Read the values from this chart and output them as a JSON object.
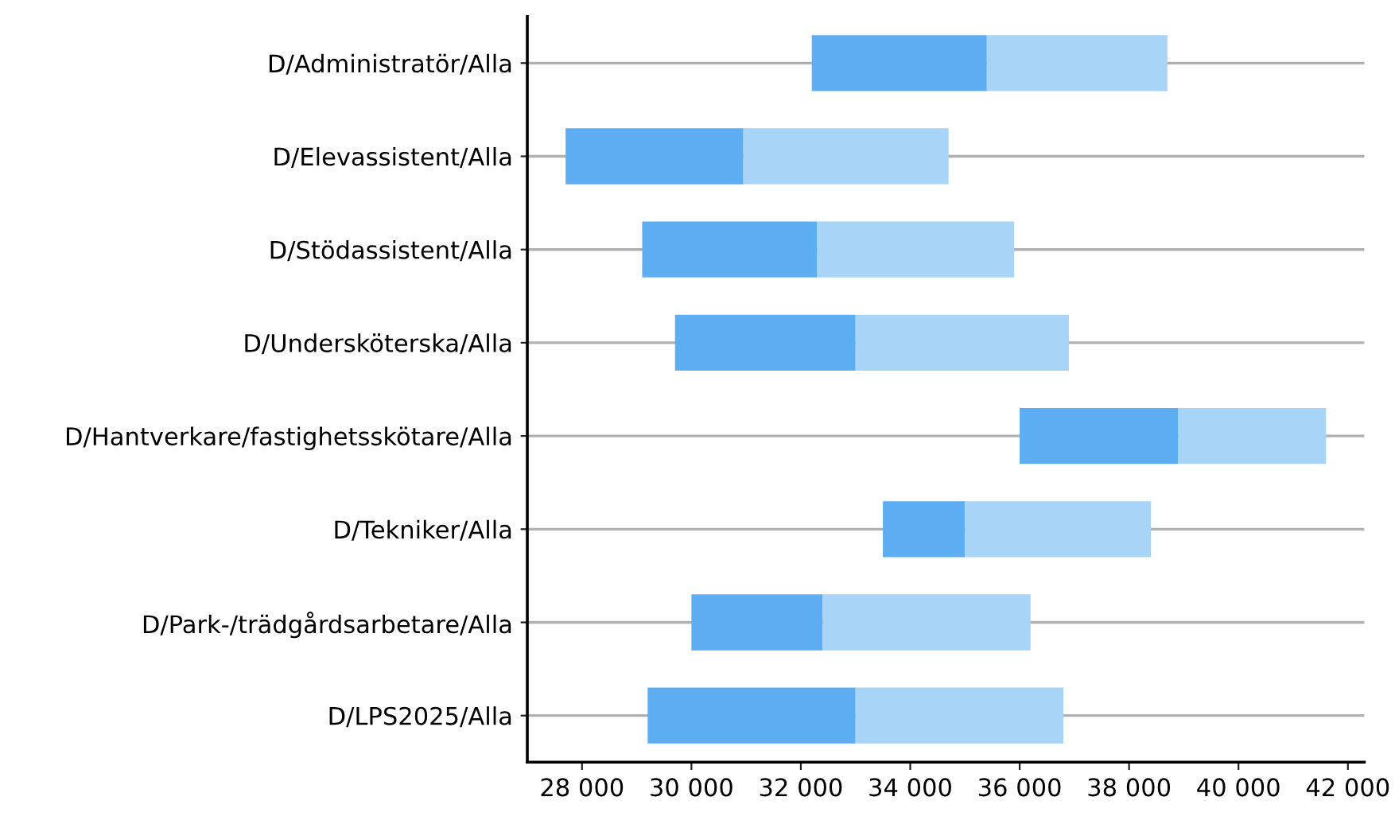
{
  "chart_data": {
    "type": "bar",
    "orientation": "horizontal",
    "categories": [
      "D/Administratör/Alla",
      "D/Elevassistent/Alla",
      "D/Stödassistent/Alla",
      "D/Undersköterska/Alla",
      "D/Hantverkare/fastighetsskötare/Alla",
      "D/Tekniker/Alla",
      "D/Park-/trädgårdsarbetare/Alla",
      "D/LPS2025/Alla"
    ],
    "series": [
      {
        "color": "#5dadf2",
        "base": [
          32200,
          27700,
          29100,
          29700,
          36000,
          33500,
          30000,
          29200
        ],
        "values": [
          3200,
          3250,
          3200,
          3300,
          2900,
          1500,
          2400,
          3800
        ]
      },
      {
        "color": "#a8d5f7",
        "base": [
          35400,
          30950,
          32300,
          33000,
          38900,
          35000,
          32400,
          33000
        ],
        "values": [
          3300,
          3750,
          3600,
          3900,
          2700,
          3400,
          3800,
          3800
        ]
      }
    ],
    "xlim": [
      27000,
      42300
    ],
    "xticks": [
      {
        "value": 28000,
        "label": "28 000"
      },
      {
        "value": 30000,
        "label": "30 000"
      },
      {
        "value": 32000,
        "label": "32 000"
      },
      {
        "value": 34000,
        "label": "34 000"
      },
      {
        "value": 36000,
        "label": "36 000"
      },
      {
        "value": 38000,
        "label": "38 000"
      },
      {
        "value": 40000,
        "label": "40 000"
      },
      {
        "value": 42000,
        "label": "42 000"
      }
    ],
    "grid": "y",
    "legend": false
  }
}
